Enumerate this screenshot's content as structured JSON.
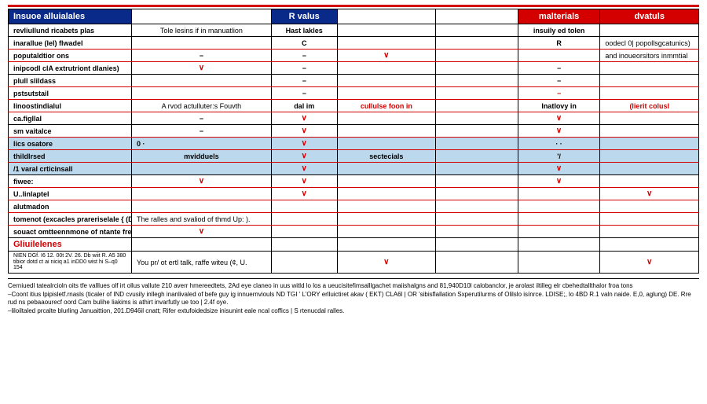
{
  "colors": {
    "header_blue": "#0a2a8a",
    "header_red": "#d40000",
    "row_divider": "#d40000",
    "highlight_row": "#bcd8ec",
    "text_black": "#000000",
    "text_red": "#d40000",
    "background": "#ffffff"
  },
  "typography": {
    "base_font_pt": 9,
    "header_font_pt": 11,
    "footer_font_pt": 8,
    "family": "Arial"
  },
  "headers": {
    "h0": "Insuoe alluialales",
    "h2": "R valus",
    "h5": "malterials",
    "h6": "dvatuls"
  },
  "rows": {
    "r0": {
      "c0": "revliullund ricabets plas",
      "c1": "Tole lesins if in manuatlion",
      "c2": "Hast lakles",
      "c5": "insuily ed tolen"
    },
    "r1": {
      "c0": "inarallue (lel)  flwadel",
      "c2": "C",
      "c5": "R",
      "c6": "oodecl 0| popollsgcatunics)"
    },
    "r2": {
      "c0": "poputaldtior ons",
      "c1": "−",
      "c2": "−",
      "c3": "∨",
      "c6": "and inoueorsitors inmmtial"
    },
    "r3": {
      "c0": "inipcodl clA extrutriont dlanies)",
      "c1": "∨",
      "c2": "−",
      "c5": "−"
    },
    "r4": {
      "c0": "plull slildass",
      "c2": "−",
      "c5": "−"
    },
    "r5": {
      "c0": "pstsutstail",
      "c2": "−",
      "c5": "−"
    },
    "r6": {
      "c0": "linoostindialul",
      "c1": "A rvod actulluter:s Fouvth",
      "c2": "dal im",
      "c3": "cullulse foon in",
      "c5": "lnatlovy in",
      "c6": "(lierit colusl"
    },
    "r7": {
      "c0": "ca.figllal",
      "c1": "−",
      "c2": "∨",
      "c5": "∨"
    },
    "r8": {
      "c0": "sm vaitalce",
      "c1": "−",
      "c2": "∨",
      "c5": "∨"
    },
    "r9": {
      "c0": "lics osatore",
      "c1": "0          ·",
      "c2": "∨",
      "c5": "· ·"
    },
    "r10": {
      "c0": "thildlrsed",
      "c1": "mvidduels",
      "c2": "∨",
      "c3": "sectecials",
      "c5": "'/"
    },
    "r11": {
      "c0": "/1 varal crticinsall",
      "c2": "∨",
      "c5": "∨"
    },
    "r12": {
      "c0": "fiwee:",
      "c1": "∨",
      "c2": "∨",
      "c5": "∨"
    },
    "r13": {
      "c0": "U..linlaptel",
      "c2": "∨",
      "c6": "∨"
    },
    "r14": {
      "c0": "alutmadon"
    },
    "r15": {
      "c0": "tomenot (excacles prareriselale { (D,",
      "c1": "The ralles and svaliod of thmd Up: )."
    },
    "r16": {
      "c0": "souact omtteennmone of ntante freon",
      "c1": "∨"
    },
    "r17": {
      "c0": "Gliuilelenes"
    },
    "r18": {
      "c0": "NIEN DGf. I6 12. 00t 2V. 26. Db wiit R. A5 380\ntibior dotd ct ai niciq a1 inDD0 wist hi S–q0 154",
      "c1": "You pr/ ot ertl talk, raffe witeu (¢, U.",
      "c3": "∨",
      "c6": "∨"
    }
  },
  "footer": {
    "l1": "Cerniuedl tatealrcioln oits tfe valllues olf irt ollus vallute 210 averr hmereedtets, 2Ad eye claneo in uus witld lo los a ueucisitefimsalllgachet maiishalgns and 81,940D10l calobanclor, je arolast iltilleg elr cbehedtallthalor froa tons",
    "l2": "–Coont itius lpipisletf.rnasls (ticaler of IND cvusily inllegh inanlivaled of befe  guy ig innuernviouls ND TGI ' L'ORY erlluictiret akav ( EKT) CLA6l | OR 'sibisflallation Sxperutilurms of Olilslo isínrce. LDISE;, lo 4BD R.1 valn naide. E,0, aglung) DE. Rre rud ns pebaaourecf oord Cam bulihe liakims is athirt invarfutly ue too | 2.4f oye.",
    "l3": "–liloiltaled prcalte blurling Januaittion, 201.D946il cnatt; Rifer extufoidedsize inisunint eale ncal coffics | S rtenucdal ralles."
  }
}
